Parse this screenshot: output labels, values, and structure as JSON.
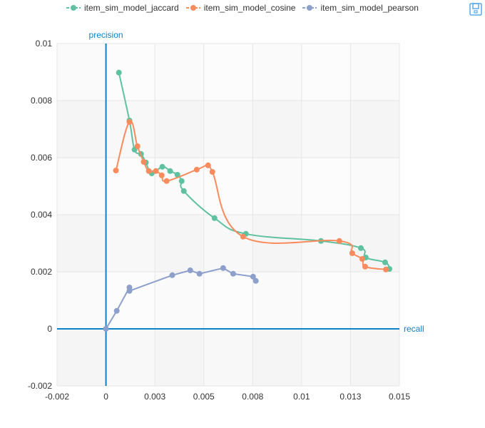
{
  "toolbox": {
    "save_icon": "save-as-image-icon"
  },
  "chart_data": {
    "type": "line",
    "title": "",
    "xlabel": "recall",
    "ylabel": "precision",
    "xlim": [
      -0.0025,
      0.015
    ],
    "ylim": [
      -0.002,
      0.01
    ],
    "x_ticks": [
      "-0.002",
      "0",
      "0.003",
      "0.005",
      "0.008",
      "0.01",
      "0.013",
      "0.015"
    ],
    "x_tick_values": [
      -0.0025,
      0,
      0.0025,
      0.005,
      0.0075,
      0.01,
      0.0125,
      0.015
    ],
    "y_ticks": [
      "-0.002",
      "0",
      "0.002",
      "0.004",
      "0.006",
      "0.008",
      "0.01"
    ],
    "y_tick_values": [
      -0.002,
      0,
      0.002,
      0.004,
      0.006,
      0.008,
      0.01
    ],
    "grid": true,
    "legend_position": "top",
    "series": [
      {
        "name": "item_sim_model_jaccard",
        "color": "#5fc1a0",
        "smooth": true,
        "points": [
          [
            0.00066,
            0.00898
          ],
          [
            0.0012,
            0.0073
          ],
          [
            0.00146,
            0.00628
          ],
          [
            0.00179,
            0.00613
          ],
          [
            0.00204,
            0.00583
          ],
          [
            0.00234,
            0.00545
          ],
          [
            0.00288,
            0.00568
          ],
          [
            0.00328,
            0.00553
          ],
          [
            0.00365,
            0.0054
          ],
          [
            0.00387,
            0.00518
          ],
          [
            0.00398,
            0.00483
          ],
          [
            0.00555,
            0.00388
          ],
          [
            0.00715,
            0.00333
          ],
          [
            0.01099,
            0.00308
          ],
          [
            0.01303,
            0.00283
          ],
          [
            0.01328,
            0.0025
          ],
          [
            0.01427,
            0.00233
          ],
          [
            0.01449,
            0.0021
          ]
        ]
      },
      {
        "name": "item_sim_model_cosine",
        "color": "#f98b5c",
        "smooth": true,
        "points": [
          [
            0.00051,
            0.00555
          ],
          [
            0.0012,
            0.00725
          ],
          [
            0.00161,
            0.0064
          ],
          [
            0.00193,
            0.00585
          ],
          [
            0.00219,
            0.00553
          ],
          [
            0.00255,
            0.00553
          ],
          [
            0.00285,
            0.00538
          ],
          [
            0.0031,
            0.00518
          ],
          [
            0.00464,
            0.00558
          ],
          [
            0.00522,
            0.00573
          ],
          [
            0.00544,
            0.0055
          ],
          [
            0.00701,
            0.00323
          ],
          [
            0.01193,
            0.00308
          ],
          [
            0.01259,
            0.00265
          ],
          [
            0.0131,
            0.00245
          ],
          [
            0.01325,
            0.00218
          ],
          [
            0.01431,
            0.00208
          ]
        ]
      },
      {
        "name": "item_sim_model_pearson",
        "color": "#8d9fcb",
        "smooth": false,
        "points": [
          [
            0,
            0
          ],
          [
            0.00055,
            0.00063
          ],
          [
            0.0012,
            0.00145
          ],
          [
            0.0012,
            0.00133
          ],
          [
            0.00339,
            0.00188
          ],
          [
            0.00431,
            0.00205
          ],
          [
            0.00478,
            0.00193
          ],
          [
            0.00599,
            0.00213
          ],
          [
            0.0065,
            0.00193
          ],
          [
            0.00752,
            0.00183
          ],
          [
            0.00766,
            0.00168
          ]
        ]
      }
    ]
  }
}
